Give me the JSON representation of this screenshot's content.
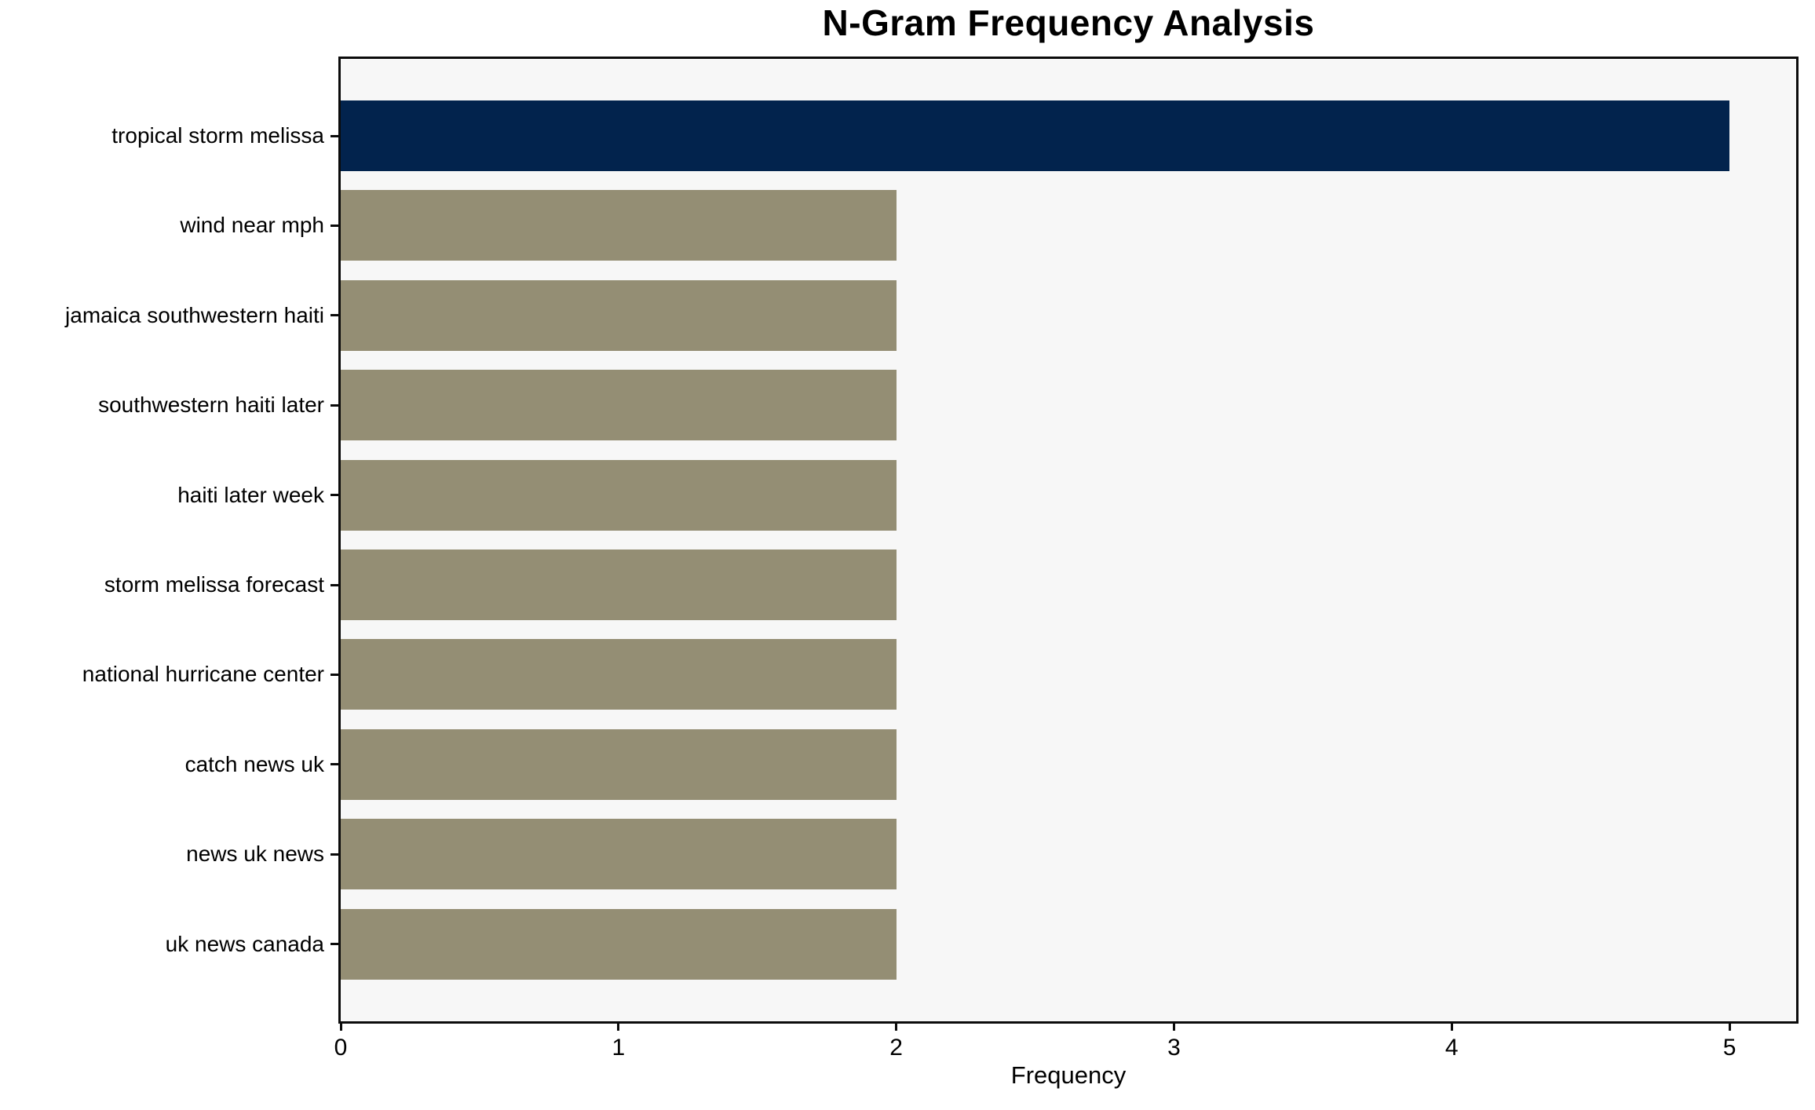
{
  "chart_data": {
    "type": "bar",
    "orientation": "horizontal",
    "title": "N-Gram Frequency Analysis",
    "xlabel": "Frequency",
    "ylabel": "",
    "categories": [
      "tropical storm melissa",
      "wind near mph",
      "jamaica southwestern haiti",
      "southwestern haiti later",
      "haiti later week",
      "storm melissa forecast",
      "national hurricane center",
      "catch news uk",
      "news uk news",
      "uk news canada"
    ],
    "values": [
      5,
      2,
      2,
      2,
      2,
      2,
      2,
      2,
      2,
      2
    ],
    "bar_colors": [
      "#02234D",
      "#948E74",
      "#948E74",
      "#948E74",
      "#948E74",
      "#948E74",
      "#948E74",
      "#948E74",
      "#948E74",
      "#948E74"
    ],
    "x_ticks": [
      0,
      1,
      2,
      3,
      4,
      5
    ],
    "xlim": [
      0,
      5.24
    ],
    "grid": false,
    "legend_position": "none",
    "colors": {
      "highlight_bar": "#02234D",
      "default_bar": "#948E74",
      "plot_background": "#F7F7F7",
      "figure_background": "#FFFFFF",
      "axis": "#0B0B0B",
      "text": "#000000"
    }
  }
}
